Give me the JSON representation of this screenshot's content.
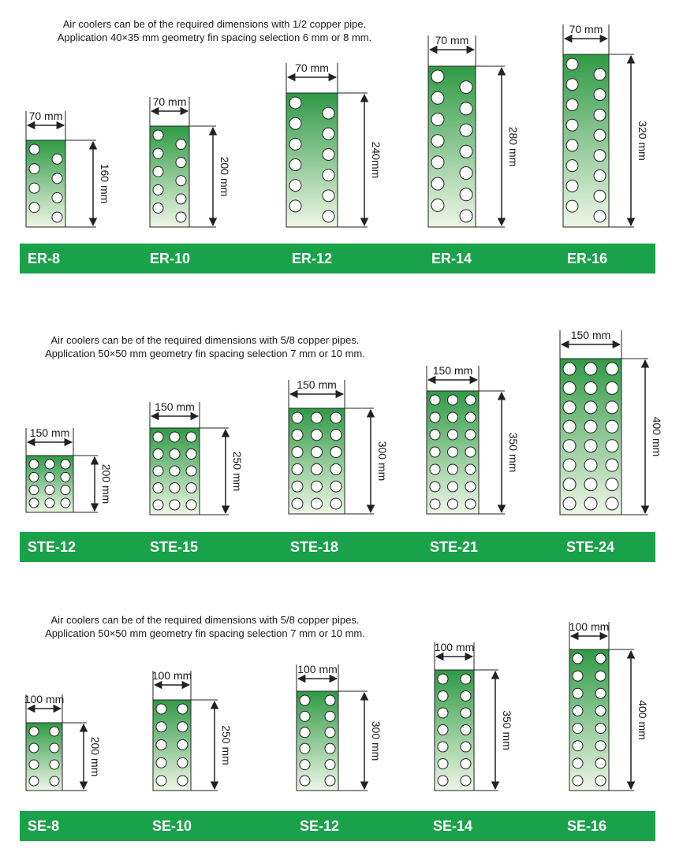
{
  "sections": [
    {
      "description": [
        "Air coolers can be of the required dimensions with 1/2 copper pipe.",
        "Application 40×35 mm geometry fin spacing selection 6 mm or 8 mm."
      ],
      "models": [
        {
          "name": "ER-8",
          "width_label": "70 mm",
          "height_label": "160 mm"
        },
        {
          "name": "ER-10",
          "width_label": "70 mm",
          "height_label": "200 mm"
        },
        {
          "name": "ER-12",
          "width_label": "70 mm",
          "height_label": "240mm"
        },
        {
          "name": "ER-14",
          "width_label": "70 mm",
          "height_label": "280 mm"
        },
        {
          "name": "ER-16",
          "width_label": "70 mm",
          "height_label": "320 mm"
        }
      ]
    },
    {
      "description": [
        "Air coolers can be of the required dimensions with 5/8 copper pipes.",
        "Application 50×50 mm geometry fin spacing selection 7 mm or 10 mm."
      ],
      "models": [
        {
          "name": "STE-12",
          "width_label": "150 mm",
          "height_label": "200 mm"
        },
        {
          "name": "STE-15",
          "width_label": "150 mm",
          "height_label": "250 mm"
        },
        {
          "name": "STE-18",
          "width_label": "150 mm",
          "height_label": "300 mm"
        },
        {
          "name": "STE-21",
          "width_label": "150 mm",
          "height_label": "350 mm"
        },
        {
          "name": "STE-24",
          "width_label": "150 mm",
          "height_label": "400 mm"
        }
      ]
    },
    {
      "description": [
        "Air coolers can be of the required dimensions with 5/8 copper pipes.",
        "Application 50×50 mm geometry fin spacing selection 7 mm or 10 mm."
      ],
      "models": [
        {
          "name": "SE-8",
          "width_label": "100 mm",
          "height_label": "200 mm"
        },
        {
          "name": "SE-10",
          "width_label": "100 mm",
          "height_label": "250 mm"
        },
        {
          "name": "SE-12",
          "width_label": "100 mm",
          "height_label": "300 mm"
        },
        {
          "name": "SE-14",
          "width_label": "100 mm",
          "height_label": "350 mm"
        },
        {
          "name": "SE-16",
          "width_label": "100 mm",
          "height_label": "400 mm"
        }
      ]
    }
  ],
  "colors": {
    "accent": "#1aa24a",
    "coil_top": "#2f9a45",
    "coil_bottom": "#eef6e6",
    "outline": "#222222"
  }
}
